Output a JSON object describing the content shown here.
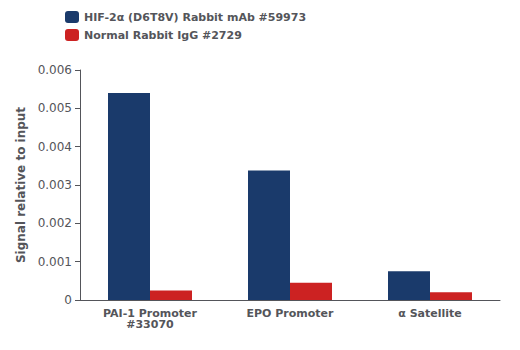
{
  "chart_data": {
    "type": "bar",
    "categories": [
      "PAI-1 Promoter\n#33070",
      "EPO Promoter",
      "α Satellite"
    ],
    "series": [
      {
        "name": "HIF-2α (D6T8V) Rabbit mAb #59973",
        "color": "#1a3a6b",
        "values": [
          0.0054,
          0.00338,
          0.00075
        ]
      },
      {
        "name": "Normal Rabbit IgG #2729",
        "color": "#cc2222",
        "values": [
          0.00025,
          0.00045,
          0.0002
        ]
      }
    ],
    "ylabel": "Signal relative to input",
    "ylim": [
      0,
      0.006
    ],
    "yticks": [
      0,
      0.001,
      0.002,
      0.003,
      0.004,
      0.005,
      0.006
    ],
    "grid": false,
    "legend": "upper left"
  }
}
